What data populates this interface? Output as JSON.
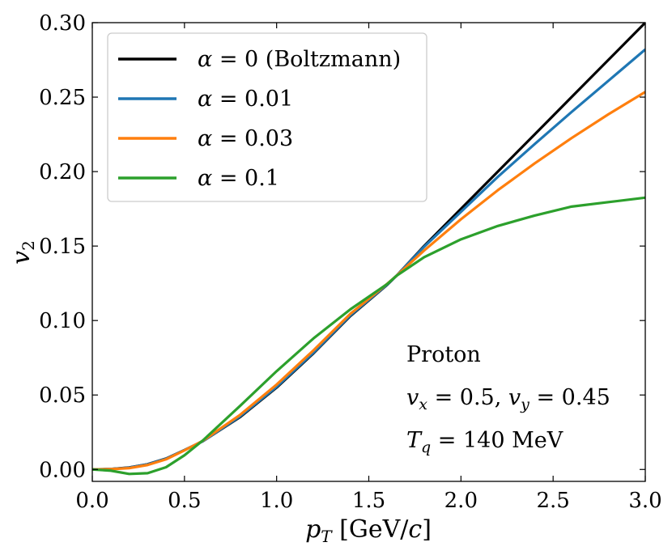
{
  "chart_data": {
    "type": "line",
    "title": "",
    "xlabel": "p_T [GeV/c]",
    "xlabel_parts": {
      "p": "p",
      "sub": "T",
      "rest": " [GeV/",
      "c": "c",
      "close": "]"
    },
    "ylabel": "v_2",
    "ylabel_parts": {
      "v": "v",
      "sub": "2"
    },
    "xlim": [
      0.0,
      3.0
    ],
    "ylim": [
      -0.008,
      0.3
    ],
    "xticks": [
      0.0,
      0.5,
      1.0,
      1.5,
      2.0,
      2.5,
      3.0
    ],
    "xtick_labels": [
      "0.0",
      "0.5",
      "1.0",
      "1.5",
      "2.0",
      "2.5",
      "3.0"
    ],
    "yticks": [
      0.0,
      0.05,
      0.1,
      0.15,
      0.2,
      0.25,
      0.3
    ],
    "ytick_labels": [
      "0.00",
      "0.05",
      "0.10",
      "0.15",
      "0.20",
      "0.25",
      "0.30"
    ],
    "grid": false,
    "legend_position": "top-left",
    "x": [
      0.0,
      0.1,
      0.2,
      0.3,
      0.4,
      0.5,
      0.6,
      0.8,
      1.0,
      1.2,
      1.4,
      1.6,
      1.65,
      1.8,
      2.0,
      2.2,
      2.4,
      2.6,
      2.8,
      3.0
    ],
    "series": [
      {
        "name": "α = 0 (Boltzmann)",
        "legend_alpha": "α",
        "legend_value": " = 0 (Boltzmann)",
        "color": "#000000",
        "values": [
          0.0,
          0.0003,
          0.0013,
          0.0035,
          0.0073,
          0.013,
          0.019,
          0.035,
          0.055,
          0.078,
          0.103,
          0.124,
          0.13,
          0.15,
          0.175,
          0.2,
          0.225,
          0.25,
          0.275,
          0.3
        ]
      },
      {
        "name": "α = 0.01",
        "legend_alpha": "α",
        "legend_value": " = 0.01",
        "color": "#1f77b4",
        "values": [
          0.0,
          0.0003,
          0.0012,
          0.0034,
          0.0072,
          0.013,
          0.019,
          0.0355,
          0.0555,
          0.0785,
          0.1035,
          0.1242,
          0.13,
          0.1495,
          0.173,
          0.1965,
          0.2185,
          0.24,
          0.261,
          0.282
        ]
      },
      {
        "name": "α = 0.03",
        "legend_alpha": "α",
        "legend_value": " = 0.03",
        "color": "#ff7f0e",
        "values": [
          0.0,
          0.0002,
          0.0009,
          0.003,
          0.0068,
          0.0128,
          0.0193,
          0.0365,
          0.057,
          0.08,
          0.1045,
          0.1247,
          0.13,
          0.147,
          0.168,
          0.1875,
          0.2055,
          0.2225,
          0.2385,
          0.2535
        ]
      },
      {
        "name": "α = 0.1",
        "legend_alpha": "α",
        "legend_value": " = 0.1",
        "color": "#2ca02c",
        "values": [
          0.0,
          -0.0008,
          -0.003,
          -0.0025,
          0.0015,
          0.0095,
          0.0195,
          0.0425,
          0.066,
          0.088,
          0.1075,
          0.1245,
          0.13,
          0.1425,
          0.1545,
          0.1635,
          0.1705,
          0.1765,
          0.1795,
          0.1825
        ]
      }
    ],
    "annotations": {
      "particle": "Proton",
      "flow_vx_label": "v",
      "flow_vx_sub": "x",
      "flow_vx_value": " = 0.5, ",
      "flow_vy_label": "v",
      "flow_vy_sub": "y",
      "flow_vy_value": " = 0.45",
      "temp_label": "T",
      "temp_sub": "q",
      "temp_value": " = 140 MeV"
    }
  }
}
